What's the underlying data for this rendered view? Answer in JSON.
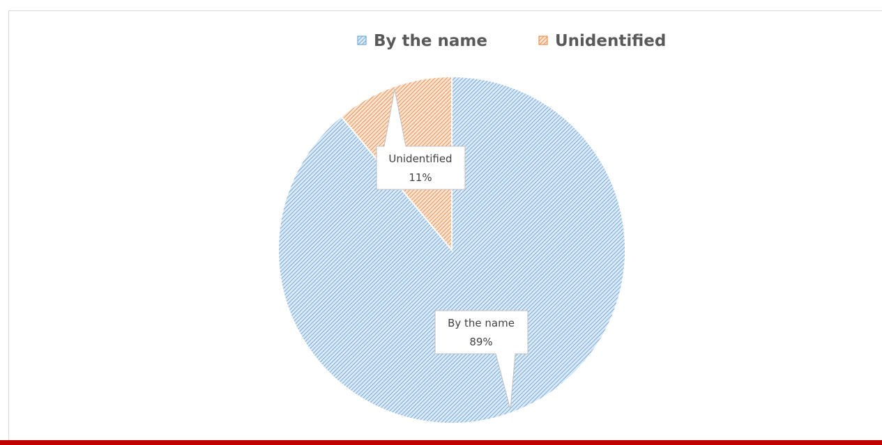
{
  "chart_data": {
    "type": "pie",
    "categories": [
      "By the name",
      "Unidentified"
    ],
    "values": [
      89,
      11
    ],
    "colors": [
      "#5b9bd5",
      "#ed7d31"
    ],
    "data_labels": [
      {
        "name": "By the name",
        "value": "89%"
      },
      {
        "name": "Unidentified",
        "value": "11%"
      }
    ],
    "legend_position": "top",
    "fill_pattern": "diagonal-hatch"
  }
}
